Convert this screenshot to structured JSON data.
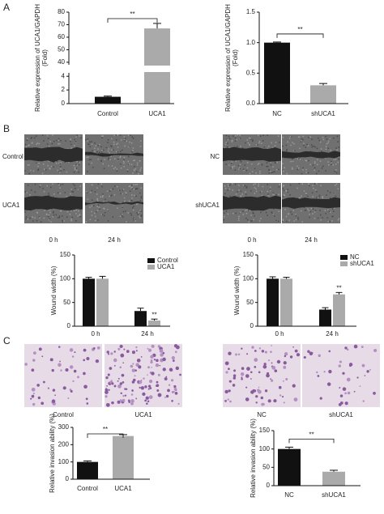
{
  "panel_labels": [
    "A",
    "B",
    "C"
  ],
  "wound_healing": [
    {
      "row_labels": [
        "Control",
        "UCA1"
      ],
      "col_labels": [
        "0 h",
        "24 h"
      ]
    },
    {
      "row_labels": [
        "NC",
        "shUCA1"
      ],
      "col_labels": [
        "0 h",
        "24 h"
      ]
    }
  ],
  "invasion": [
    {
      "labels": [
        "Control",
        "UCA1"
      ]
    },
    {
      "labels": [
        "NC",
        "shUCA1"
      ]
    }
  ],
  "chart_data": [
    {
      "type": "bar",
      "ylabel": [
        "Relative expression of UCA1/GAPDH",
        "(Fold)"
      ],
      "categories": [
        "Control",
        "UCA1"
      ],
      "values": [
        1,
        67
      ],
      "errors": [
        0.1,
        4
      ],
      "colors": [
        "#111111",
        "#aaaaaa"
      ],
      "ylim": [
        0,
        80
      ],
      "ybreak": [
        4.5,
        38
      ],
      "yticks": [
        0,
        2,
        4,
        40,
        50,
        60,
        70,
        80
      ],
      "annotation": "**"
    },
    {
      "type": "bar",
      "ylabel": [
        "Relative expression of UCA1/GAPDH",
        "(Fold)"
      ],
      "categories": [
        "NC",
        "shUCA1"
      ],
      "values": [
        1,
        0.3
      ],
      "errors": [
        0.01,
        0.03
      ],
      "colors": [
        "#111111",
        "#aaaaaa"
      ],
      "ylim": [
        0,
        1.5
      ],
      "yticks": [
        {
          "value": 0,
          "label": "0.0"
        },
        0.5,
        {
          "value": 1,
          "label": "1.0"
        },
        1.5
      ],
      "annotation": "**"
    },
    {
      "type": "grouped_bar",
      "ylabel": "Wound width (%)",
      "categories": [
        "0 h",
        "24 h"
      ],
      "series": [
        {
          "name": "Control",
          "color": "#111111",
          "values": [
            100,
            32
          ],
          "errors": [
            3,
            6
          ]
        },
        {
          "name": "UCA1",
          "color": "#aaaaaa",
          "values": [
            100,
            12
          ],
          "errors": [
            5,
            3
          ]
        }
      ],
      "ylim": [
        0,
        150
      ],
      "yticks": [
        0,
        50,
        100,
        150
      ],
      "annotation": "**"
    },
    {
      "type": "grouped_bar",
      "ylabel": "Wound width (%)",
      "categories": [
        "0 h",
        "24 h"
      ],
      "series": [
        {
          "name": "NC",
          "color": "#111111",
          "values": [
            100,
            35
          ],
          "errors": [
            4,
            4
          ]
        },
        {
          "name": "shUCA1",
          "color": "#aaaaaa",
          "values": [
            100,
            67
          ],
          "errors": [
            3,
            4
          ]
        }
      ],
      "ylim": [
        0,
        150
      ],
      "yticks": [
        0,
        50,
        100,
        150
      ],
      "annotation": "**"
    },
    {
      "type": "bar",
      "ylabel": "Relative invasion ability (%)",
      "categories": [
        "Control",
        "UCA1"
      ],
      "values": [
        100,
        250
      ],
      "errors": [
        6,
        8
      ],
      "colors": [
        "#111111",
        "#aaaaaa"
      ],
      "ylim": [
        0,
        300
      ],
      "yticks": [
        0,
        100,
        200,
        300
      ],
      "annotation": "**"
    },
    {
      "type": "bar",
      "ylabel": "Relative invasion ability (%)",
      "categories": [
        "NC",
        "shUCA1"
      ],
      "values": [
        100,
        38
      ],
      "errors": [
        5,
        4
      ],
      "colors": [
        "#111111",
        "#aaaaaa"
      ],
      "ylim": [
        0,
        150
      ],
      "yticks": [
        0,
        50,
        100,
        150
      ],
      "annotation": "**"
    }
  ]
}
